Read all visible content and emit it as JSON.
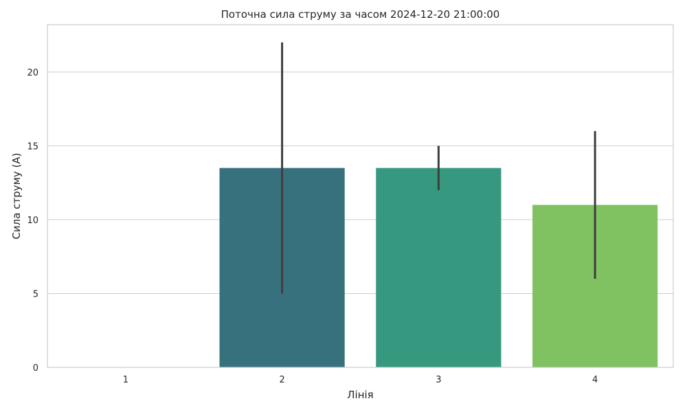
{
  "chart_data": {
    "type": "bar",
    "title": "Поточна сила струму за часом 2024-12-20 21:00:00",
    "xlabel": "Лінія",
    "ylabel": "Сила струму (A)",
    "categories": [
      "1",
      "2",
      "3",
      "4"
    ],
    "values": [
      0,
      13.5,
      13.5,
      11
    ],
    "error_low": [
      0,
      5,
      12,
      6
    ],
    "error_high": [
      0,
      22,
      15,
      16
    ],
    "ylim": [
      0,
      23.2
    ],
    "yticks": [
      0,
      5,
      10,
      15,
      20
    ],
    "grid": "horizontal",
    "colors": [
      "#481f70",
      "#37717e",
      "#36987e",
      "#80c262"
    ],
    "error_color": "#3d3d3d"
  }
}
